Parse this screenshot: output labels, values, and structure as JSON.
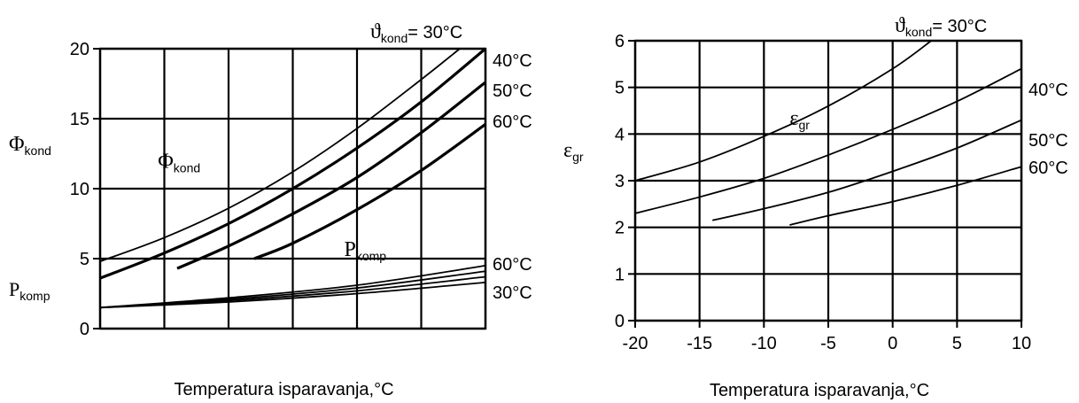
{
  "chart_data": [
    {
      "type": "line",
      "xlabel": "Temperatura isparavanja,°C",
      "ylabel": "Φkond",
      "ylabel_secondary": "Pkomp",
      "x": [
        -20,
        -15,
        -10,
        -5,
        0,
        5,
        10
      ],
      "xlim": [
        -20,
        10
      ],
      "ylim": [
        0,
        20
      ],
      "yticks": [
        0,
        5,
        10,
        15,
        20
      ],
      "grid": true,
      "header_label": "ϑkond= 30°C",
      "annotations": [
        {
          "text": "Φkond",
          "x": -15.5,
          "y": 11.5
        },
        {
          "text": "Pkomp",
          "x": -1,
          "y": 5.2
        }
      ],
      "series": [
        {
          "name": "30°C",
          "label": "",
          "points": [
            [
              -20,
              4.8
            ],
            [
              -15,
              6.5
            ],
            [
              -10,
              8.6
            ],
            [
              -5,
              11.2
            ],
            [
              0,
              14.3
            ],
            [
              5,
              17.8
            ],
            [
              8,
              20
            ]
          ]
        },
        {
          "name": "40°C",
          "label": "40°C",
          "points": [
            [
              -20,
              3.6
            ],
            [
              -15,
              5.4
            ],
            [
              -10,
              7.5
            ],
            [
              -5,
              10.0
            ],
            [
              0,
              12.9
            ],
            [
              5,
              16.2
            ],
            [
              10,
              20
            ]
          ]
        },
        {
          "name": "50°C",
          "label": "50°C",
          "points": [
            [
              -14,
              4.3
            ],
            [
              -10,
              5.9
            ],
            [
              -5,
              8.2
            ],
            [
              0,
              10.8
            ],
            [
              5,
              14.0
            ],
            [
              10,
              17.6
            ]
          ]
        },
        {
          "name": "60°C",
          "label": "60°C",
          "points": [
            [
              -8,
              5.0
            ],
            [
              -5,
              6.1
            ],
            [
              0,
              8.5
            ],
            [
              5,
              11.3
            ],
            [
              10,
              14.6
            ]
          ]
        },
        {
          "name": "Pkomp 60°C",
          "label": "60°C",
          "points": [
            [
              -20,
              1.5
            ],
            [
              -10,
              2.2
            ],
            [
              0,
              3.1
            ],
            [
              10,
              4.5
            ]
          ]
        },
        {
          "name": "Pkomp 50°C",
          "label": "",
          "points": [
            [
              -20,
              1.5
            ],
            [
              -10,
              2.1
            ],
            [
              0,
              2.9
            ],
            [
              10,
              4.1
            ]
          ]
        },
        {
          "name": "Pkomp 40°C",
          "label": "",
          "points": [
            [
              -20,
              1.5
            ],
            [
              -10,
              2.0
            ],
            [
              0,
              2.7
            ],
            [
              10,
              3.7
            ]
          ]
        },
        {
          "name": "Pkomp 30°C",
          "label": "30°C",
          "points": [
            [
              -20,
              1.5
            ],
            [
              -10,
              1.9
            ],
            [
              0,
              2.5
            ],
            [
              10,
              3.3
            ]
          ]
        }
      ]
    },
    {
      "type": "line",
      "xlabel": "Temperatura isparavanja,°C",
      "ylabel": "εgr",
      "x": [
        -20,
        -15,
        -10,
        -5,
        0,
        5,
        10
      ],
      "xticks": [
        "-20",
        "-15",
        "-10",
        "-5",
        "0",
        "5",
        "10"
      ],
      "xlim": [
        -20,
        10
      ],
      "ylim": [
        0,
        6
      ],
      "yticks": [
        0,
        1,
        2,
        3,
        4,
        5,
        6
      ],
      "grid": true,
      "header_label": "ϑkond= 30°C",
      "annotations": [
        {
          "text": "εgr",
          "x": -8,
          "y": 4.2
        }
      ],
      "series": [
        {
          "name": "30°C",
          "label": "",
          "points": [
            [
              -20,
              3.0
            ],
            [
              -15,
              3.4
            ],
            [
              -10,
              3.95
            ],
            [
              -5,
              4.6
            ],
            [
              0,
              5.4
            ],
            [
              3,
              6.0
            ]
          ]
        },
        {
          "name": "40°C",
          "label": "40°C",
          "points": [
            [
              -20,
              2.3
            ],
            [
              -15,
              2.65
            ],
            [
              -10,
              3.05
            ],
            [
              -5,
              3.55
            ],
            [
              0,
              4.1
            ],
            [
              5,
              4.7
            ],
            [
              10,
              5.4
            ]
          ]
        },
        {
          "name": "50°C",
          "label": "50°C",
          "points": [
            [
              -14,
              2.15
            ],
            [
              -10,
              2.4
            ],
            [
              -5,
              2.75
            ],
            [
              0,
              3.2
            ],
            [
              5,
              3.7
            ],
            [
              10,
              4.3
            ]
          ]
        },
        {
          "name": "60°C",
          "label": "60°C",
          "points": [
            [
              -8,
              2.05
            ],
            [
              -5,
              2.25
            ],
            [
              0,
              2.55
            ],
            [
              5,
              2.9
            ],
            [
              10,
              3.3
            ]
          ]
        }
      ]
    }
  ]
}
